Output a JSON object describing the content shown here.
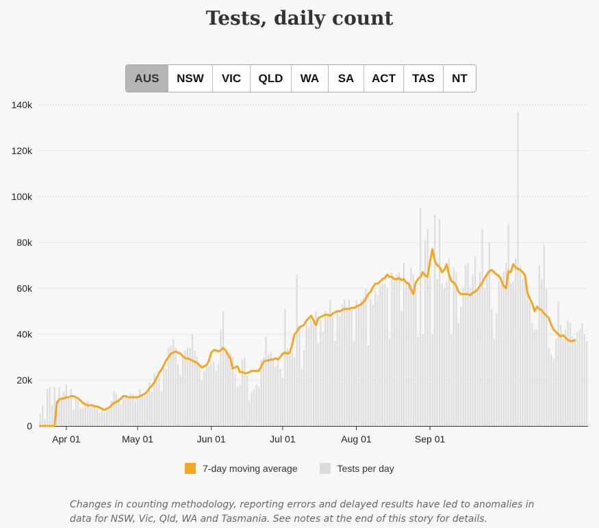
{
  "title": "Tests, daily count",
  "tabs": [
    {
      "label": "AUS",
      "active": true
    },
    {
      "label": "NSW",
      "active": false
    },
    {
      "label": "VIC",
      "active": false
    },
    {
      "label": "QLD",
      "active": false
    },
    {
      "label": "WA",
      "active": false
    },
    {
      "label": "SA",
      "active": false
    },
    {
      "label": "ACT",
      "active": false
    },
    {
      "label": "TAS",
      "active": false
    },
    {
      "label": "NT",
      "active": false
    }
  ],
  "legend": {
    "avg_label": "7-day moving average",
    "bars_label": "Tests per day"
  },
  "colors": {
    "avg": "#f5a623",
    "bars": "#dcdcdc",
    "grid": "#d6d6d6",
    "axis": "#333333"
  },
  "note": "Changes in counting methodology, reporting errors and delayed results have led to anomalies in data for NSW, Vic, Qld, WA and Tasmania. See notes at the end of this story for details.",
  "chart_data": {
    "type": "bar",
    "title": "Tests, daily count",
    "x_start": "2020-03-21",
    "ylim": [
      0,
      140000
    ],
    "yticks": [
      0,
      20000,
      40000,
      60000,
      80000,
      100000,
      120000,
      140000
    ],
    "ytick_labels": [
      "0",
      "20k",
      "40k",
      "60k",
      "80k",
      "100k",
      "120k",
      "140k"
    ],
    "xticks": [
      {
        "date": "2020-04-01",
        "label": "Apr 01"
      },
      {
        "date": "2020-05-01",
        "label": "May 01"
      },
      {
        "date": "2020-06-01",
        "label": "Jun 01"
      },
      {
        "date": "2020-07-01",
        "label": "Jul 01"
      },
      {
        "date": "2020-08-01",
        "label": "Aug 01"
      },
      {
        "date": "2020-09-01",
        "label": "Sep 01"
      }
    ],
    "grid": true,
    "series": [
      {
        "name": "Tests per day",
        "type": "bar",
        "values": [
          5000,
          9000,
          3000,
          16000,
          17000,
          9000,
          17000,
          11000,
          17000,
          12000,
          15000,
          18000,
          12000,
          16000,
          7000,
          12000,
          11000,
          8000,
          8000,
          9000,
          11000,
          8000,
          9000,
          8000,
          9000,
          6000,
          8000,
          6000,
          8000,
          8000,
          11000,
          15000,
          14000,
          12000,
          9000,
          12000,
          13000,
          13000,
          14000,
          14000,
          11000,
          12000,
          16000,
          14000,
          13000,
          14000,
          19000,
          15000,
          23000,
          22000,
          21000,
          15000,
          25000,
          25000,
          34000,
          35000,
          38000,
          34000,
          27000,
          22000,
          30000,
          33000,
          34000,
          34000,
          40000,
          33000,
          30000,
          26000,
          20000,
          24000,
          26000,
          26000,
          27000,
          28000,
          24000,
          27000,
          42000,
          50000,
          33000,
          31000,
          32000,
          30000,
          23000,
          17000,
          18000,
          29000,
          30000,
          22000,
          11000,
          15000,
          16000,
          18000,
          17000,
          29000,
          30000,
          39000,
          31000,
          32000,
          29000,
          26000,
          29000,
          25000,
          21000,
          51000,
          34000,
          33000,
          32000,
          30000,
          66000,
          43000,
          25000,
          33000,
          44000,
          43000,
          46000,
          47000,
          50000,
          36000,
          46000,
          41000,
          50000,
          48000,
          55000,
          48000,
          37000,
          50000,
          48000,
          53000,
          55000,
          52000,
          55000,
          51000,
          37000,
          55000,
          52000,
          55000,
          56000,
          60000,
          35000,
          55000,
          53000,
          59000,
          57000,
          61000,
          62000,
          62000,
          60000,
          38000,
          67000,
          63000,
          66000,
          67000,
          50000,
          71000,
          62000,
          63000,
          69000,
          66000,
          60000,
          39000,
          95000,
          40000,
          81000,
          86000,
          65000,
          40000,
          92000,
          64000,
          90000,
          62000,
          60000,
          63000,
          73000,
          40000,
          69000,
          67000,
          45000,
          52000,
          60000,
          70000,
          71000,
          60000,
          66000,
          74000,
          59000,
          67000,
          86000,
          60000,
          67000,
          80000,
          51000,
          38000,
          49000,
          63000,
          65000,
          67000,
          71000,
          88000,
          62000,
          63000,
          73000,
          137000,
          70000,
          64000,
          65000,
          57000,
          54000,
          45000,
          42000,
          42000,
          70000,
          64000,
          79000,
          60000,
          34000,
          31000,
          29000,
          38000,
          54000,
          44000,
          38000,
          42000,
          46000,
          45000,
          39000,
          38000,
          41000,
          42000,
          45000,
          40000,
          37000
        ]
      },
      {
        "name": "7-day moving average",
        "type": "line",
        "values": [
          0,
          0,
          0,
          0,
          0,
          0,
          0,
          10000,
          11500,
          12000,
          12000,
          12500,
          12500,
          13000,
          13000,
          12500,
          12000,
          11000,
          10000,
          9500,
          9000,
          9000,
          9000,
          8500,
          8500,
          8000,
          7500,
          7000,
          7500,
          8000,
          9000,
          10000,
          10500,
          11000,
          12000,
          13000,
          13000,
          12500,
          12500,
          12500,
          12500,
          12500,
          13000,
          13500,
          14000,
          15000,
          16500,
          17500,
          19000,
          21000,
          23000,
          24500,
          26500,
          28500,
          30000,
          31500,
          32000,
          32500,
          32000,
          31500,
          30500,
          29500,
          29500,
          29000,
          28500,
          28000,
          27500,
          26500,
          25500,
          26000,
          26500,
          28500,
          32000,
          33000,
          33000,
          32500,
          33000,
          34000,
          33000,
          31000,
          29500,
          25000,
          25500,
          26000,
          23500,
          23500,
          23000,
          23000,
          23500,
          24000,
          24000,
          24000,
          24000,
          26000,
          28000,
          28500,
          28500,
          29000,
          29000,
          29500,
          29000,
          30000,
          31500,
          32000,
          31500,
          32000,
          35500,
          40000,
          41000,
          43000,
          43500,
          44000,
          46000,
          47000,
          48000,
          46000,
          44000,
          47000,
          47500,
          48000,
          48500,
          48500,
          48000,
          49000,
          49500,
          50000,
          50000,
          50500,
          51000,
          51000,
          51000,
          51500,
          51500,
          52000,
          52500,
          53000,
          54000,
          55500,
          57500,
          58500,
          60500,
          62000,
          62000,
          63000,
          64000,
          64500,
          66000,
          65000,
          65000,
          64000,
          64000,
          64500,
          63500,
          64000,
          62500,
          62000,
          59500,
          57500,
          62500,
          64000,
          65000,
          67000,
          65500,
          65000,
          71500,
          77000,
          72000,
          70000,
          69500,
          67000,
          68000,
          70500,
          66000,
          63000,
          62500,
          61000,
          58500,
          57500,
          57500,
          57500,
          57500,
          57000,
          58000,
          58500,
          59500,
          61000,
          62500,
          64500,
          66000,
          67500,
          68000,
          67000,
          66000,
          65500,
          63500,
          61000,
          60000,
          67500,
          67000,
          70500,
          69000,
          68500,
          68000,
          67000,
          65500,
          58000,
          55500,
          53500,
          50000,
          52000,
          51000,
          50500,
          49000,
          48000,
          47000,
          44000,
          42000,
          41000,
          40000,
          39000,
          39500,
          38500,
          37500,
          37000,
          37000,
          37500
        ]
      }
    ]
  }
}
